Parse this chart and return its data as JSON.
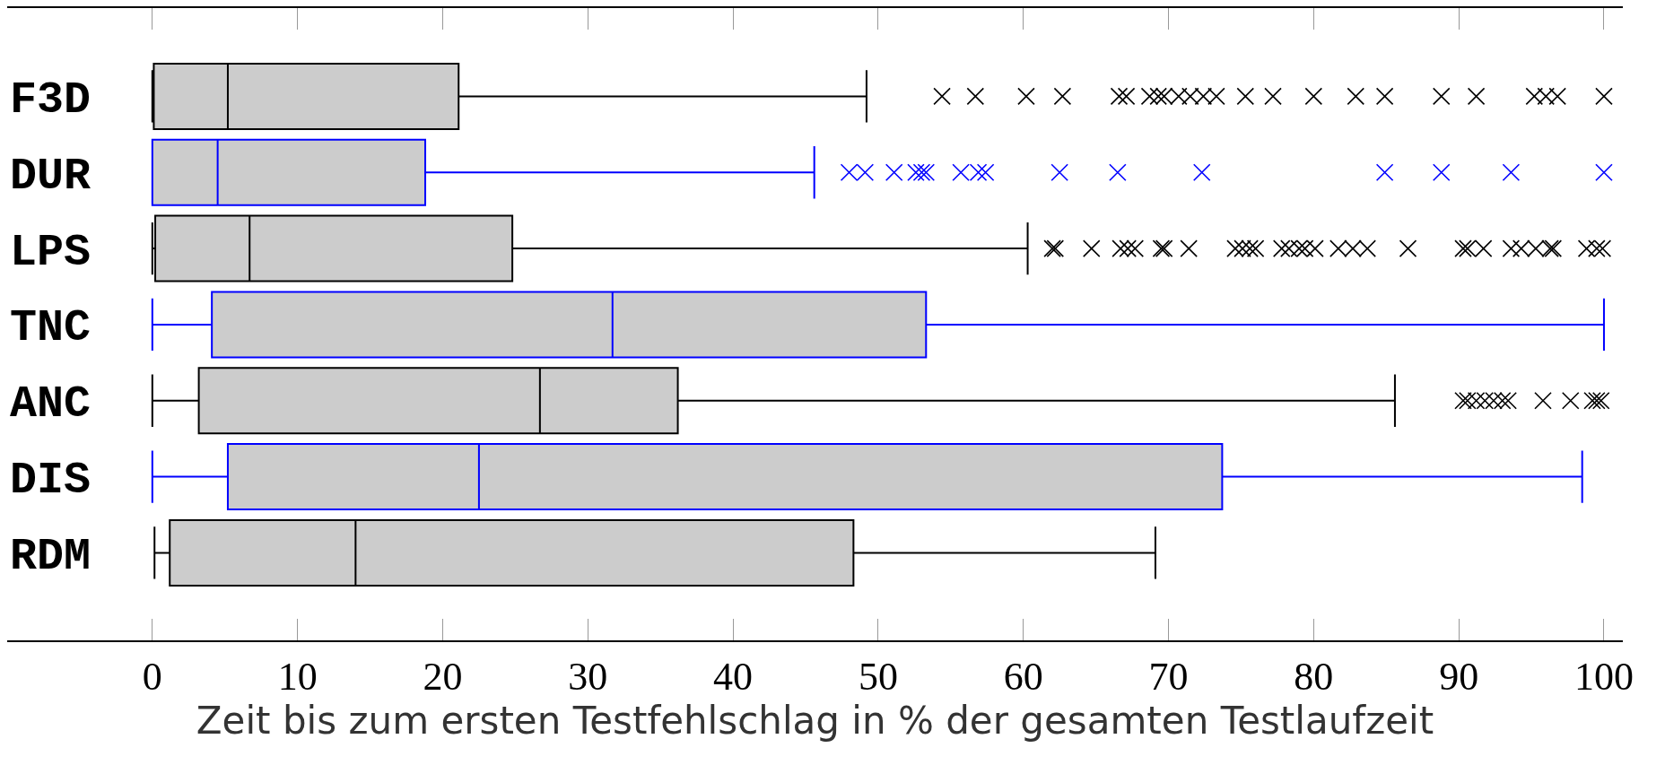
{
  "chart_data": {
    "type": "box",
    "orientation": "horizontal",
    "xlabel": "Zeit bis zum ersten Testfehlschlag in % der gesamten Testlaufzeit",
    "categories": [
      "F3D",
      "DUR",
      "LPS",
      "TNC",
      "ANC",
      "DIS",
      "RDM"
    ],
    "colors": [
      "#000000",
      "#0000ff",
      "#000000",
      "#0000ff",
      "#000000",
      "#0000ff",
      "#000000"
    ],
    "boxes": [
      {
        "low": 0,
        "q1": 0.1,
        "median": 5.2,
        "q3": 21.1,
        "high": 49.2,
        "outliers": [
          54.4,
          56.7,
          60.2,
          62.7,
          66.6,
          67.1,
          68.7,
          69.3,
          69.7,
          70.7,
          71.5,
          72.4,
          73.3,
          75.3,
          77.2,
          80.0,
          82.9,
          84.9,
          88.8,
          91.2,
          95.2,
          96.0,
          96.8,
          100
        ]
      },
      {
        "low": 0,
        "q1": 0,
        "median": 4.5,
        "q3": 18.8,
        "high": 45.6,
        "outliers": [
          48.0,
          49.1,
          51.1,
          52.6,
          53.0,
          53.3,
          55.7,
          56.9,
          57.4,
          62.5,
          66.5,
          72.3,
          84.9,
          88.8,
          93.6,
          100
        ]
      },
      {
        "low": 0,
        "q1": 0.2,
        "median": 6.7,
        "q3": 24.8,
        "high": 60.3,
        "outliers": [
          62.0,
          62.2,
          64.7,
          66.7,
          67.2,
          67.7,
          69.5,
          69.7,
          71.4,
          74.6,
          75.1,
          75.6,
          76.0,
          77.8,
          78.3,
          79.0,
          79.4,
          80.1,
          81.7,
          82.7,
          83.7,
          86.5,
          90.3,
          90.6,
          91.7,
          93.6,
          94.3,
          95.3,
          96.3,
          96.5,
          98.8,
          99.5,
          99.9
        ]
      },
      {
        "low": 0,
        "q1": 4.1,
        "median": 31.7,
        "q3": 53.3,
        "high": 100
      },
      {
        "low": 0,
        "q1": 3.2,
        "median": 26.7,
        "q3": 36.2,
        "high": 85.6,
        "outliers": [
          90.3,
          90.6,
          91.2,
          91.8,
          92.4,
          93.0,
          93.4,
          95.8,
          97.7,
          99.2,
          99.5,
          99.8
        ]
      },
      {
        "low": 0,
        "q1": 5.2,
        "median": 22.5,
        "q3": 73.7,
        "high": 98.5
      },
      {
        "low": 0.15,
        "q1": 1.2,
        "median": 14.0,
        "q3": 48.3,
        "high": 69.1
      }
    ],
    "xlim": [
      -10,
      101.3
    ],
    "xticks": [
      0,
      10,
      20,
      30,
      40,
      50,
      60,
      70,
      80,
      90,
      100
    ],
    "marker": "cross"
  }
}
